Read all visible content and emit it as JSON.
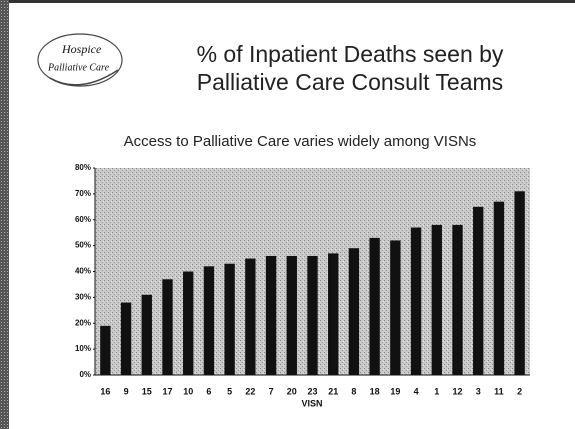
{
  "chart_data": {
    "type": "bar",
    "logo_text": [
      "Hospice",
      "Palliative Care"
    ],
    "title": "% of Inpatient Deaths seen by Palliative Care Consult Teams",
    "subtitle": "Access to Palliative Care varies widely among VISNs",
    "x_label": "VISN",
    "categories": [
      "16",
      "9",
      "15",
      "17",
      "10",
      "6",
      "5",
      "22",
      "7",
      "20",
      "23",
      "21",
      "8",
      "18",
      "19",
      "4",
      "1",
      "12",
      "3",
      "11",
      "2"
    ],
    "values": [
      19,
      28,
      31,
      37,
      40,
      42,
      43,
      45,
      46,
      46,
      46,
      47,
      49,
      53,
      52,
      57,
      58,
      58,
      65,
      67,
      71
    ],
    "color": "#111111",
    "ylim": [
      0,
      80
    ],
    "yticks": [
      {
        "value": 0,
        "label": "0%"
      },
      {
        "value": 10,
        "label": "10%"
      },
      {
        "value": 20,
        "label": "20%"
      },
      {
        "value": 30,
        "label": "30%"
      },
      {
        "value": 40,
        "label": "40%"
      },
      {
        "value": 50,
        "label": "50%"
      },
      {
        "value": 60,
        "label": "60%"
      },
      {
        "value": 70,
        "label": "70%"
      },
      {
        "value": 80,
        "label": "80%"
      }
    ],
    "grid": false
  }
}
